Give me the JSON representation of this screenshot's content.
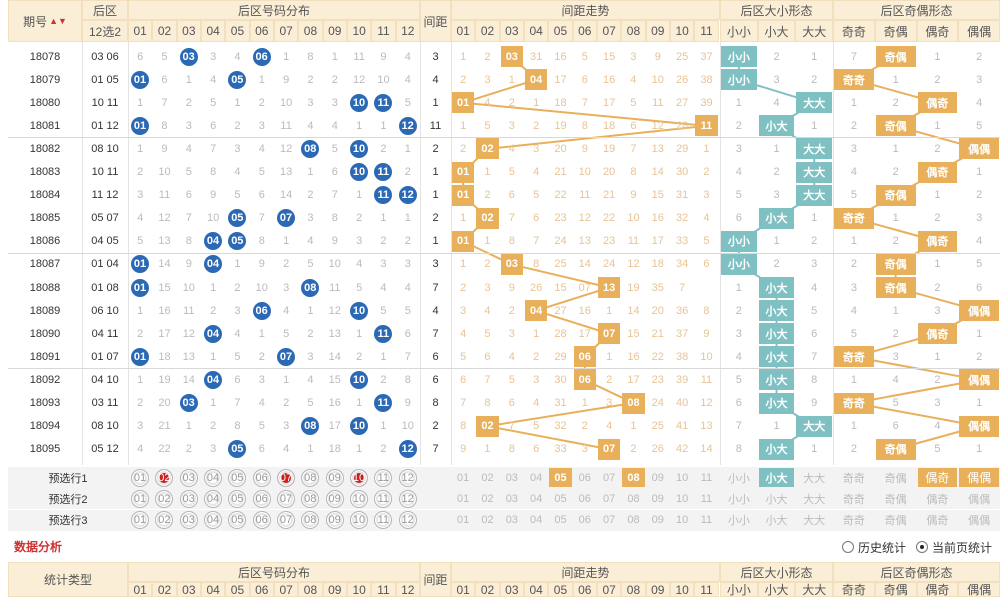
{
  "header": {
    "qihao": "期号",
    "houqu": "后区",
    "xuan": "12选2",
    "fenbu": "后区号码分布",
    "jianju": "间距",
    "zoushi": "间距走势",
    "daxiao": "后区大小形态",
    "jiou": "后区奇偶形态",
    "dx_cols": [
      "小小",
      "小大",
      "大大"
    ],
    "jo_cols": [
      "奇奇",
      "奇偶",
      "偶奇",
      "偶偶"
    ],
    "nums": [
      "01",
      "02",
      "03",
      "04",
      "05",
      "06",
      "07",
      "08",
      "09",
      "10",
      "11",
      "12"
    ],
    "gap_nums": [
      "01",
      "02",
      "03",
      "04",
      "05",
      "06",
      "07",
      "08",
      "09",
      "10",
      "11"
    ]
  },
  "rows": [
    {
      "period": "18078",
      "pair": "03 06",
      "balls": [
        3,
        6
      ],
      "dist": [
        "6",
        "5",
        "03",
        "3",
        "4",
        "06",
        "1",
        "8",
        "1",
        "11",
        "9",
        "4"
      ],
      "gap": "3",
      "gapcells": [
        "1",
        "2",
        "03",
        "31",
        "16",
        "5",
        "15",
        "3",
        "9",
        "25",
        "37"
      ],
      "dx": "小小",
      "dxc": [
        "小小",
        "2",
        "1"
      ],
      "jo": "奇偶",
      "joc": [
        "7",
        "奇偶",
        "1",
        "2"
      ]
    },
    {
      "period": "18079",
      "pair": "01 05",
      "balls": [
        1,
        5
      ],
      "dist": [
        "01",
        "6",
        "1",
        "4",
        "05",
        "1",
        "9",
        "2",
        "2",
        "12",
        "10",
        "4"
      ],
      "gap": "4",
      "gapcells": [
        "2",
        "3",
        "1",
        "04",
        "17",
        "6",
        "16",
        "4",
        "10",
        "26",
        "38"
      ],
      "dx": "小小",
      "dxc": [
        "小小",
        "3",
        "2"
      ],
      "jo": "奇奇",
      "joc": [
        "奇奇",
        "1",
        "2",
        "3"
      ]
    },
    {
      "period": "18080",
      "pair": "10 11",
      "balls": [
        10,
        11
      ],
      "dist": [
        "1",
        "7",
        "2",
        "5",
        "1",
        "2",
        "10",
        "3",
        "3",
        "10",
        "11",
        "5"
      ],
      "gap": "1",
      "gapcells": [
        "01",
        "4",
        "2",
        "1",
        "18",
        "7",
        "17",
        "5",
        "11",
        "27",
        "39"
      ],
      "dx": "大大",
      "dxc": [
        "1",
        "4",
        "大大"
      ],
      "jo": "偶奇",
      "joc": [
        "1",
        "2",
        "偶奇",
        "4"
      ]
    },
    {
      "period": "18081",
      "pair": "01 12",
      "balls": [
        1,
        12
      ],
      "dist": [
        "01",
        "8",
        "3",
        "6",
        "2",
        "3",
        "11",
        "4",
        "4",
        "1",
        "1",
        "12"
      ],
      "gap": "11",
      "gapcells": [
        "1",
        "5",
        "3",
        "2",
        "19",
        "8",
        "18",
        "6",
        "12",
        "28",
        "11"
      ],
      "dx": "小大",
      "dxc": [
        "2",
        "小大",
        "1"
      ],
      "jo": "奇偶",
      "joc": [
        "2",
        "奇偶",
        "1",
        "5"
      ]
    },
    {
      "period": "18082",
      "pair": "08 10",
      "balls": [
        8,
        10
      ],
      "dist": [
        "1",
        "9",
        "4",
        "7",
        "3",
        "4",
        "12",
        "08",
        "5",
        "10",
        "2",
        "1"
      ],
      "gap": "2",
      "gapcells": [
        "2",
        "02",
        "4",
        "3",
        "20",
        "9",
        "19",
        "7",
        "13",
        "29",
        "1"
      ],
      "dx": "大大",
      "dxc": [
        "3",
        "1",
        "大大"
      ],
      "jo": "偶偶",
      "joc": [
        "3",
        "1",
        "2",
        "偶偶"
      ]
    },
    {
      "period": "18083",
      "pair": "10 11",
      "balls": [
        10,
        11
      ],
      "dist": [
        "2",
        "10",
        "5",
        "8",
        "4",
        "5",
        "13",
        "1",
        "6",
        "10",
        "11",
        "2"
      ],
      "gap": "1",
      "gapcells": [
        "01",
        "1",
        "5",
        "4",
        "21",
        "10",
        "20",
        "8",
        "14",
        "30",
        "2"
      ],
      "dx": "大大",
      "dxc": [
        "4",
        "2",
        "大大"
      ],
      "jo": "偶奇",
      "joc": [
        "4",
        "2",
        "偶奇",
        "1"
      ]
    },
    {
      "period": "18084",
      "pair": "11 12",
      "balls": [
        11,
        12
      ],
      "dist": [
        "3",
        "11",
        "6",
        "9",
        "5",
        "6",
        "14",
        "2",
        "7",
        "1",
        "11",
        "12"
      ],
      "gap": "1",
      "gapcells": [
        "01",
        "2",
        "6",
        "5",
        "22",
        "11",
        "21",
        "9",
        "15",
        "31",
        "3"
      ],
      "dx": "大大",
      "dxc": [
        "5",
        "3",
        "大大"
      ],
      "jo": "奇偶",
      "joc": [
        "5",
        "奇偶",
        "1",
        "2"
      ]
    },
    {
      "period": "18085",
      "pair": "05 07",
      "balls": [
        5,
        7
      ],
      "dist": [
        "4",
        "12",
        "7",
        "10",
        "05",
        "7",
        "07",
        "3",
        "8",
        "2",
        "1",
        "1"
      ],
      "gap": "2",
      "gapcells": [
        "1",
        "02",
        "7",
        "6",
        "23",
        "12",
        "22",
        "10",
        "16",
        "32",
        "4"
      ],
      "dx": "小大",
      "dxc": [
        "6",
        "小大",
        "1"
      ],
      "jo": "奇奇",
      "joc": [
        "奇奇",
        "1",
        "2",
        "3"
      ]
    },
    {
      "period": "18086",
      "pair": "04 05",
      "balls": [
        4,
        5
      ],
      "dist": [
        "5",
        "13",
        "8",
        "04",
        "05",
        "8",
        "1",
        "4",
        "9",
        "3",
        "2",
        "2"
      ],
      "gap": "1",
      "gapcells": [
        "01",
        "1",
        "8",
        "7",
        "24",
        "13",
        "23",
        "11",
        "17",
        "33",
        "5"
      ],
      "dx": "小小",
      "dxc": [
        "小小",
        "1",
        "2"
      ],
      "jo": "偶奇",
      "joc": [
        "1",
        "2",
        "偶奇",
        "4"
      ]
    },
    {
      "period": "18087",
      "pair": "01 04",
      "balls": [
        1,
        4
      ],
      "dist": [
        "01",
        "14",
        "9",
        "04",
        "1",
        "9",
        "2",
        "5",
        "10",
        "4",
        "3",
        "3"
      ],
      "gap": "3",
      "gapcells": [
        "1",
        "2",
        "03",
        "8",
        "25",
        "14",
        "24",
        "12",
        "18",
        "34",
        "6"
      ],
      "dx": "小小",
      "dxc": [
        "小小",
        "2",
        "3"
      ],
      "jo": "奇偶",
      "joc": [
        "2",
        "奇偶",
        "1",
        "5"
      ]
    },
    {
      "period": "18088",
      "pair": "01 08",
      "balls": [
        1,
        8
      ],
      "dist": [
        "01",
        "15",
        "10",
        "1",
        "2",
        "10",
        "3",
        "08",
        "11",
        "5",
        "4",
        "4"
      ],
      "gap": "7",
      "gapcells": [
        "2",
        "3",
        "9",
        "26",
        "15",
        "07",
        "13",
        "19",
        "35",
        "7",
        ""
      ],
      "dx": "小大",
      "dxc": [
        "1",
        "小大",
        "4"
      ],
      "jo": "奇偶",
      "joc": [
        "3",
        "奇偶",
        "2",
        "6"
      ]
    },
    {
      "period": "18089",
      "pair": "06 10",
      "balls": [
        6,
        10
      ],
      "dist": [
        "1",
        "16",
        "11",
        "2",
        "3",
        "06",
        "4",
        "1",
        "12",
        "10",
        "5",
        "5"
      ],
      "gap": "4",
      "gapcells": [
        "3",
        "4",
        "2",
        "04",
        "27",
        "16",
        "1",
        "14",
        "20",
        "36",
        "8"
      ],
      "dx": "小大",
      "dxc": [
        "2",
        "小大",
        "5"
      ],
      "jo": "偶偶",
      "joc": [
        "4",
        "1",
        "3",
        "偶偶"
      ]
    },
    {
      "period": "18090",
      "pair": "04 11",
      "balls": [
        4,
        11
      ],
      "dist": [
        "2",
        "17",
        "12",
        "04",
        "4",
        "1",
        "5",
        "2",
        "13",
        "1",
        "11",
        "6"
      ],
      "gap": "7",
      "gapcells": [
        "4",
        "5",
        "3",
        "1",
        "28",
        "17",
        "07",
        "15",
        "21",
        "37",
        "9"
      ],
      "dx": "小大",
      "dxc": [
        "3",
        "小大",
        "6"
      ],
      "jo": "偶奇",
      "joc": [
        "5",
        "2",
        "偶奇",
        "1"
      ]
    },
    {
      "period": "18091",
      "pair": "01 07",
      "balls": [
        1,
        7
      ],
      "dist": [
        "01",
        "18",
        "13",
        "1",
        "5",
        "2",
        "07",
        "3",
        "14",
        "2",
        "1",
        "7"
      ],
      "gap": "6",
      "gapcells": [
        "5",
        "6",
        "4",
        "2",
        "29",
        "06",
        "1",
        "16",
        "22",
        "38",
        "10"
      ],
      "dx": "小大",
      "dxc": [
        "4",
        "小大",
        "7"
      ],
      "jo": "奇奇",
      "joc": [
        "奇奇",
        "3",
        "1",
        "2"
      ]
    },
    {
      "period": "18092",
      "pair": "04 10",
      "balls": [
        4,
        10
      ],
      "dist": [
        "1",
        "19",
        "14",
        "04",
        "6",
        "3",
        "1",
        "4",
        "15",
        "10",
        "2",
        "8"
      ],
      "gap": "6",
      "gapcells": [
        "6",
        "7",
        "5",
        "3",
        "30",
        "06",
        "2",
        "17",
        "23",
        "39",
        "11"
      ],
      "dx": "小大",
      "dxc": [
        "5",
        "小大",
        "8"
      ],
      "jo": "偶偶",
      "joc": [
        "1",
        "4",
        "2",
        "偶偶"
      ]
    },
    {
      "period": "18093",
      "pair": "03 11",
      "balls": [
        3,
        11
      ],
      "dist": [
        "2",
        "20",
        "03",
        "1",
        "7",
        "4",
        "2",
        "5",
        "16",
        "1",
        "11",
        "9"
      ],
      "gap": "8",
      "gapcells": [
        "7",
        "8",
        "6",
        "4",
        "31",
        "1",
        "3",
        "08",
        "24",
        "40",
        "12"
      ],
      "dx": "小大",
      "dxc": [
        "6",
        "小大",
        "9"
      ],
      "jo": "奇奇",
      "joc": [
        "奇奇",
        "5",
        "3",
        "1"
      ]
    },
    {
      "period": "18094",
      "pair": "08 10",
      "balls": [
        8,
        10
      ],
      "dist": [
        "3",
        "21",
        "1",
        "2",
        "8",
        "5",
        "3",
        "08",
        "17",
        "10",
        "1",
        "10"
      ],
      "gap": "2",
      "gapcells": [
        "8",
        "02",
        "7",
        "5",
        "32",
        "2",
        "4",
        "1",
        "25",
        "41",
        "13"
      ],
      "dx": "大大",
      "dxc": [
        "7",
        "1",
        "大大"
      ],
      "jo": "偶偶",
      "joc": [
        "1",
        "6",
        "4",
        "偶偶"
      ]
    },
    {
      "period": "18095",
      "pair": "05 12",
      "balls": [
        5,
        12
      ],
      "dist": [
        "4",
        "22",
        "2",
        "3",
        "05",
        "6",
        "4",
        "1",
        "18",
        "1",
        "2",
        "12"
      ],
      "gap": "7",
      "gapcells": [
        "9",
        "1",
        "8",
        "6",
        "33",
        "3",
        "07",
        "2",
        "26",
        "42",
        "14"
      ],
      "dx": "小大",
      "dxc": [
        "8",
        "小大",
        "1"
      ],
      "jo": "奇偶",
      "joc": [
        "2",
        "奇偶",
        "5",
        "1"
      ]
    }
  ],
  "picks": [
    {
      "label": "预选行1",
      "red": [
        2,
        7,
        10
      ],
      "gaphl": [
        5,
        8
      ],
      "dxhl": [
        1
      ],
      "johl": [
        2,
        3
      ]
    },
    {
      "label": "预选行2",
      "red": [],
      "gaphl": [],
      "dxhl": [],
      "johl": []
    },
    {
      "label": "预选行3",
      "red": [],
      "gaphl": [],
      "dxhl": [],
      "johl": []
    }
  ],
  "analysis": {
    "title": "数据分析",
    "opt1": "历史统计",
    "opt2": "当前页统计",
    "stat_type": "统计类型"
  },
  "colors": {
    "blue": "#2b69b5",
    "red": "#cc1f1f",
    "orange": "#e8b05a",
    "teal": "#7fc0c2"
  }
}
